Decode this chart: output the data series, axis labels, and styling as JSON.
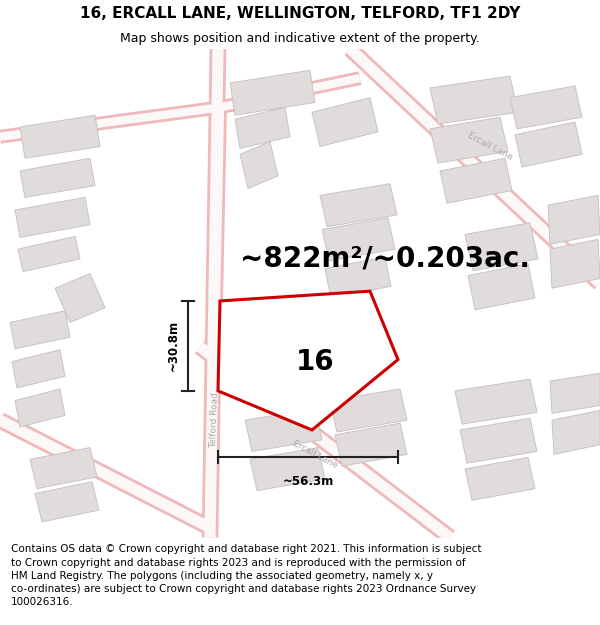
{
  "title": "16, ERCALL LANE, WELLINGTON, TELFORD, TF1 2DY",
  "subtitle": "Map shows position and indicative extent of the property.",
  "area_text": "~822m²/~0.203ac.",
  "property_number": "16",
  "dim_width": "~56.3m",
  "dim_height": "~30.8m",
  "footer_lines": [
    "Contains OS data © Crown copyright and database right 2021. This information is subject",
    "to Crown copyright and database rights 2023 and is reproduced with the permission of",
    "HM Land Registry. The polygons (including the associated geometry, namely x, y",
    "co-ordinates) are subject to Crown copyright and database rights 2023 Ordnance Survey",
    "100026316."
  ],
  "map_bg": "#f7f4f4",
  "road_color": "#f0b8b8",
  "road_fill": "#fae8e8",
  "building_color": "#e0dcdc",
  "building_edge": "#c8c4c4",
  "property_fill": "#ffffff",
  "property_edge": "#cc0000",
  "dim_color": "#222222",
  "title_fontsize": 11,
  "subtitle_fontsize": 9,
  "area_fontsize": 20,
  "propnum_fontsize": 20,
  "footer_fontsize": 7.5,
  "road_lw": 1.2,
  "prop_lw": 2.2
}
